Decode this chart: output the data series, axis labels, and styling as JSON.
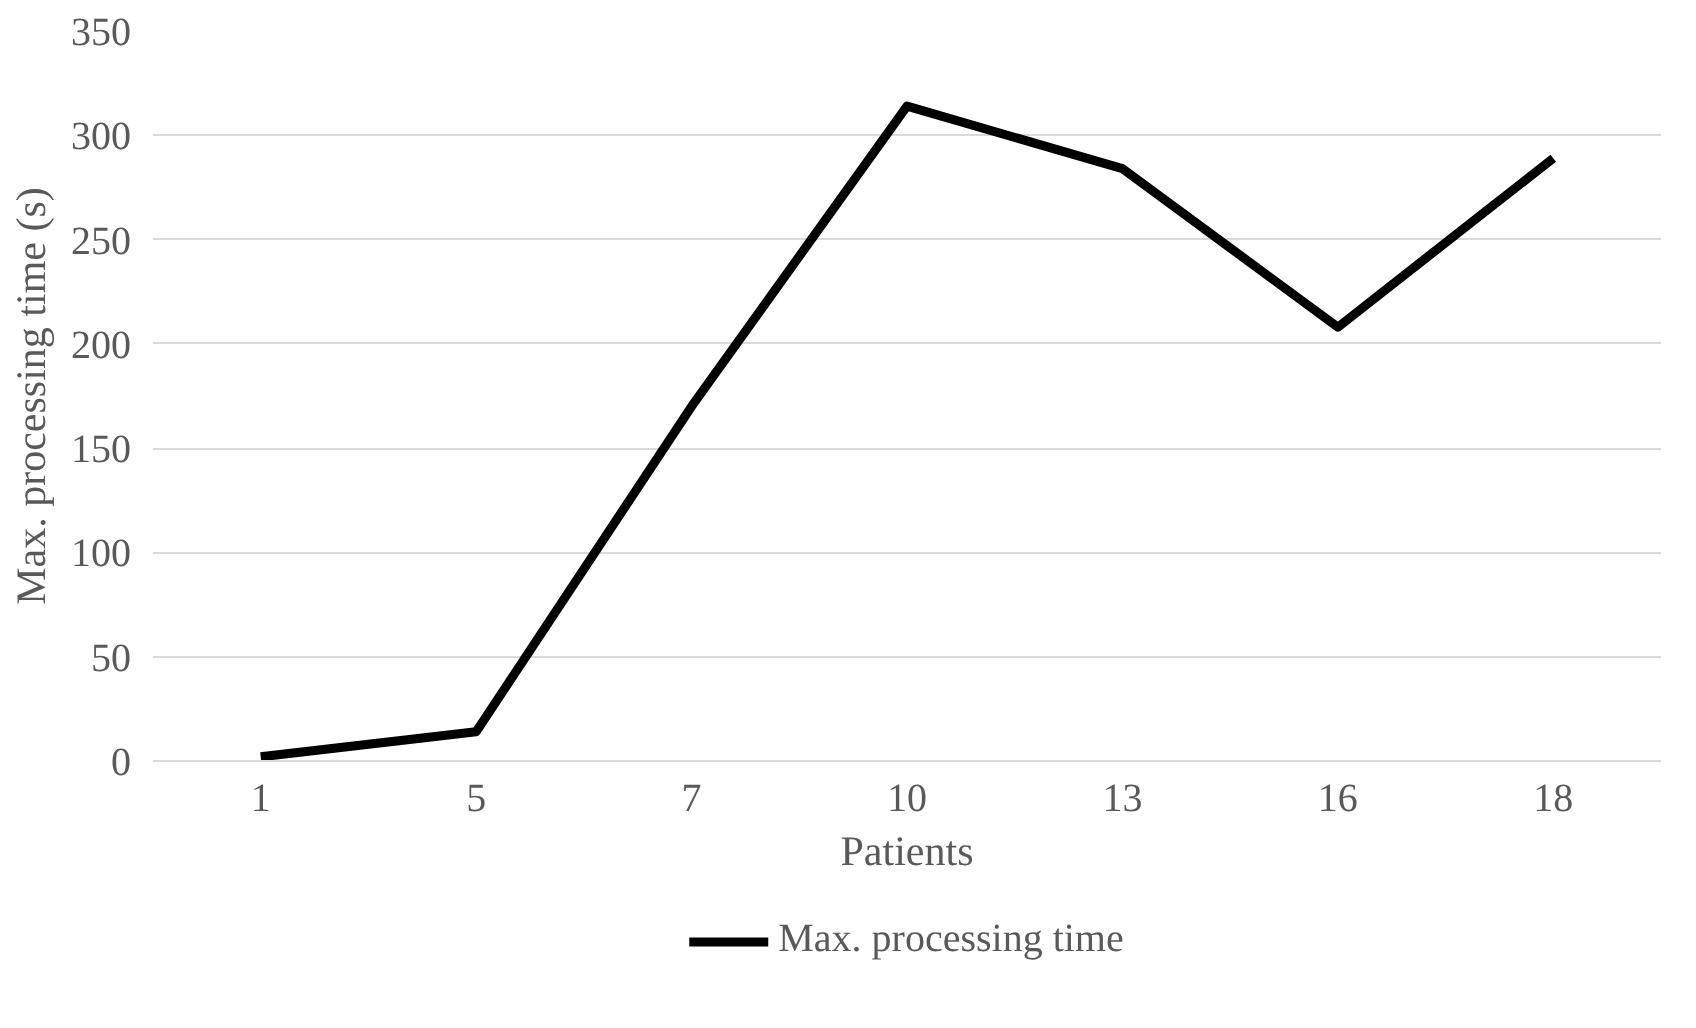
{
  "chart_data": {
    "type": "line",
    "xlabel": "Patients",
    "ylabel": "Max. processing time (s)",
    "categories": [
      "1",
      "5",
      "7",
      "10",
      "13",
      "16",
      "18"
    ],
    "series": [
      {
        "name": "Max. processing time",
        "color": "#000000",
        "values": [
          2,
          14,
          170,
          314,
          284,
          208,
          289
        ]
      }
    ],
    "ylim": [
      0,
      350
    ],
    "yticks": [
      0,
      50,
      100,
      150,
      200,
      250,
      300,
      350
    ],
    "grid": "y",
    "legend": "bottom",
    "marker": "none",
    "line_style": "solid"
  }
}
